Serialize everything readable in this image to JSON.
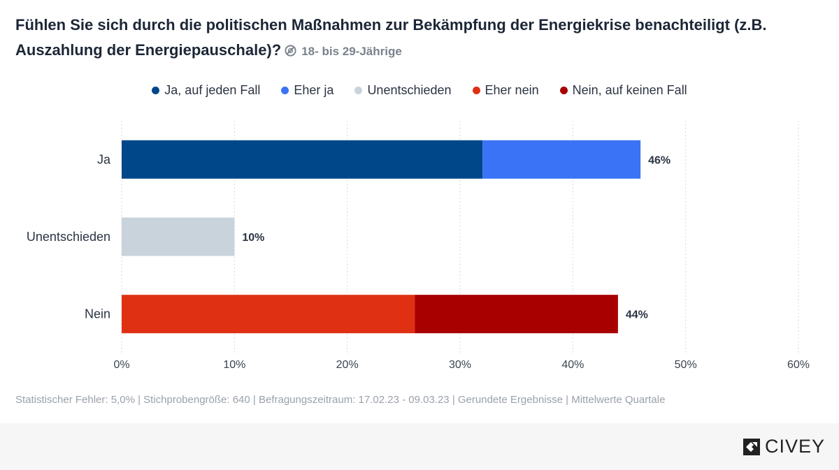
{
  "header": {
    "title": "Fühlen Sie sich durch die politischen Maßnahmen zur Bekämpfung der Energiekrise benachteiligt (z.B. Auszahlung der Energiepauschale)?",
    "subgroup": "18- bis 29-Jährige"
  },
  "legend": [
    {
      "label": "Ja, auf jeden Fall",
      "color": "#00478a"
    },
    {
      "label": "Eher ja",
      "color": "#3a73f5"
    },
    {
      "label": "Unentschieden",
      "color": "#c8d3dc"
    },
    {
      "label": "Eher nein",
      "color": "#df3014"
    },
    {
      "label": "Nein, auf keinen Fall",
      "color": "#a80000"
    }
  ],
  "chart_data": {
    "type": "bar",
    "orientation": "horizontal",
    "stacked": true,
    "categories": [
      "Ja",
      "Unentschieden",
      "Nein"
    ],
    "series": [
      {
        "name": "Ja, auf jeden Fall",
        "values": [
          32,
          0,
          0
        ]
      },
      {
        "name": "Eher ja",
        "values": [
          14,
          0,
          0
        ]
      },
      {
        "name": "Unentschieden",
        "values": [
          0,
          10,
          0
        ]
      },
      {
        "name": "Eher nein",
        "values": [
          0,
          0,
          26
        ]
      },
      {
        "name": "Nein, auf keinen Fall",
        "values": [
          0,
          0,
          18
        ]
      }
    ],
    "totals": [
      "46%",
      "10%",
      "44%"
    ],
    "xlim": [
      0,
      60
    ],
    "xticks": [
      "0%",
      "10%",
      "20%",
      "30%",
      "40%",
      "50%",
      "60%"
    ],
    "grid": true,
    "legend_position": "top-center"
  },
  "footnote": "Statistischer Fehler: 5,0% | Stichprobengröße: 640 | Befragungszeitraum: 17.02.23 - 09.03.23 | Gerundete Ergebnisse | Mittelwerte Quartale",
  "brand": {
    "name": "CIVEY"
  }
}
